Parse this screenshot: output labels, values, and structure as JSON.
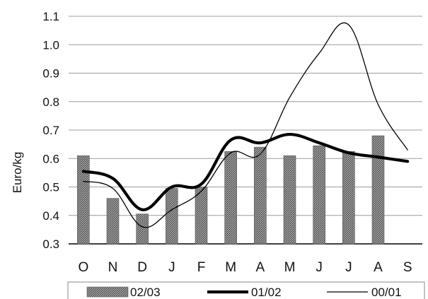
{
  "chart_data": {
    "type": "bar+line",
    "title": "",
    "xlabel": "",
    "ylabel": "Euro/kg",
    "ylim": [
      0.3,
      1.1
    ],
    "yticks": [
      "0.3",
      "0.4",
      "0.5",
      "0.6",
      "0.7",
      "0.8",
      "0.9",
      "1.0",
      "1.1"
    ],
    "grid": "horizontal",
    "legend_position": "bottom",
    "categories": [
      "O",
      "N",
      "D",
      "J",
      "F",
      "M",
      "A",
      "M",
      "J",
      "J",
      "A",
      "S"
    ],
    "series": [
      {
        "name": "02/03",
        "kind": "bar",
        "color": "#8a8a8a",
        "values": [
          0.61,
          0.46,
          0.405,
          0.495,
          0.5,
          0.625,
          0.64,
          0.61,
          0.645,
          0.625,
          0.68,
          null
        ]
      },
      {
        "name": "01/02",
        "kind": "line",
        "style": "thick",
        "color": "#000000",
        "values": [
          0.555,
          0.53,
          0.42,
          0.5,
          0.51,
          0.665,
          0.655,
          0.685,
          0.655,
          0.62,
          0.605,
          0.59
        ]
      },
      {
        "name": "00/01",
        "kind": "line",
        "style": "thin",
        "color": "#000000",
        "values": [
          0.52,
          0.495,
          0.36,
          0.42,
          0.485,
          0.62,
          0.615,
          0.815,
          0.97,
          1.07,
          0.79,
          0.63
        ]
      }
    ]
  }
}
